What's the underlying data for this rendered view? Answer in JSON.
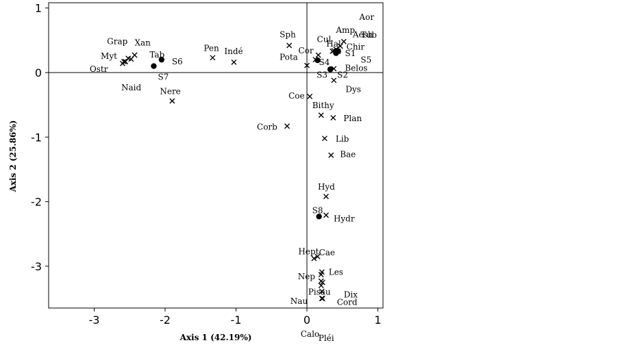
{
  "chart_data": {
    "type": "scatter",
    "xlabel": "Axis 1 (42.19%)",
    "ylabel": "Axis 2 (25.86%)",
    "xlim": [
      -3.6,
      1.1
    ],
    "ylim": [
      -3.6,
      1.1
    ],
    "xticks": [
      -3,
      -2,
      -1,
      0,
      1
    ],
    "yticks": [
      1,
      0,
      -1,
      -2,
      -3
    ],
    "reference_lines": {
      "x": 0,
      "y": 0
    },
    "grid": false,
    "colors": {
      "marks": "#000000",
      "axes": "#000000",
      "background": "#ffffff"
    },
    "series": [
      {
        "marker": "cross",
        "points": [
          {
            "label": "Xan",
            "x": -2.43,
            "y": 0.27
          },
          {
            "label": "Grap",
            "x": -2.52,
            "y": 0.22
          },
          {
            "label": "Myt",
            "x": -2.56,
            "y": 0.17
          },
          {
            "label": "Ostr",
            "x": -2.6,
            "y": 0.14
          },
          {
            "label": "Naid",
            "x": -2.58,
            "y": 0.17
          },
          {
            "label": "Tab",
            "x": -2.48,
            "y": 0.21
          },
          {
            "label": "Nere",
            "x": -1.9,
            "y": -0.44
          },
          {
            "label": "Pen",
            "x": -1.33,
            "y": 0.23
          },
          {
            "label": "Indé",
            "x": -1.03,
            "y": 0.16
          },
          {
            "label": "Sph",
            "x": -0.25,
            "y": 0.42
          },
          {
            "label": "Pota",
            "x": 0.0,
            "y": 0.11
          },
          {
            "label": "Cul",
            "x": 0.16,
            "y": 0.27
          },
          {
            "label": "Cor",
            "x": 0.12,
            "y": 0.2
          },
          {
            "label": "Hal",
            "x": 0.36,
            "y": 0.33
          },
          {
            "label": "Amp",
            "x": 0.38,
            "y": 0.34
          },
          {
            "label": "Aor",
            "x": 0.41,
            "y": 0.36
          },
          {
            "label": "Tub",
            "x": 0.44,
            "y": 0.33
          },
          {
            "label": "Aesh",
            "x": 0.52,
            "y": 0.48
          },
          {
            "label": "Chir",
            "x": 0.47,
            "y": 0.41
          },
          {
            "label": "Belos",
            "x": 0.38,
            "y": 0.06
          },
          {
            "label": "Dys",
            "x": 0.38,
            "y": -0.12
          },
          {
            "label": "Coe",
            "x": 0.04,
            "y": -0.37
          },
          {
            "label": "Bithy",
            "x": 0.2,
            "y": -0.66
          },
          {
            "label": "Plan",
            "x": 0.37,
            "y": -0.7
          },
          {
            "label": "Corb",
            "x": -0.28,
            "y": -0.83
          },
          {
            "label": "Lib",
            "x": 0.25,
            "y": -1.02
          },
          {
            "label": "Bae",
            "x": 0.34,
            "y": -1.28
          },
          {
            "label": "Hyd",
            "x": 0.27,
            "y": -1.92
          },
          {
            "label": "Hydr",
            "x": 0.27,
            "y": -2.21
          },
          {
            "label": "Hept",
            "x": 0.1,
            "y": -2.88
          },
          {
            "label": "Cae",
            "x": 0.15,
            "y": -2.85
          },
          {
            "label": "Les",
            "x": 0.21,
            "y": -3.09
          },
          {
            "label": "Nep",
            "x": 0.2,
            "y": -3.13
          },
          {
            "label": "Pisau",
            "x": 0.2,
            "y": -3.23
          },
          {
            "label": "Dix",
            "x": 0.22,
            "y": -3.25
          },
          {
            "label": "Nau",
            "x": 0.2,
            "y": -3.3
          },
          {
            "label": "Cord",
            "x": 0.21,
            "y": -3.39
          },
          {
            "label": "Calo",
            "x": 0.21,
            "y": -3.5
          },
          {
            "label": "Pléi",
            "x": 0.22,
            "y": -3.5
          }
        ]
      },
      {
        "marker": "dot",
        "points": [
          {
            "label": "S1",
            "x": 0.44,
            "y": 0.33
          },
          {
            "label": "S2",
            "x": 0.33,
            "y": 0.05
          },
          {
            "label": "S3",
            "x": 0.33,
            "y": 0.05
          },
          {
            "label": "S4",
            "x": 0.15,
            "y": 0.19
          },
          {
            "label": "S5",
            "x": 0.41,
            "y": 0.3
          },
          {
            "label": "S6",
            "x": -2.05,
            "y": 0.2
          },
          {
            "label": "S7",
            "x": -2.16,
            "y": 0.1
          },
          {
            "label": "S8",
            "x": 0.17,
            "y": -2.23
          }
        ]
      }
    ]
  }
}
